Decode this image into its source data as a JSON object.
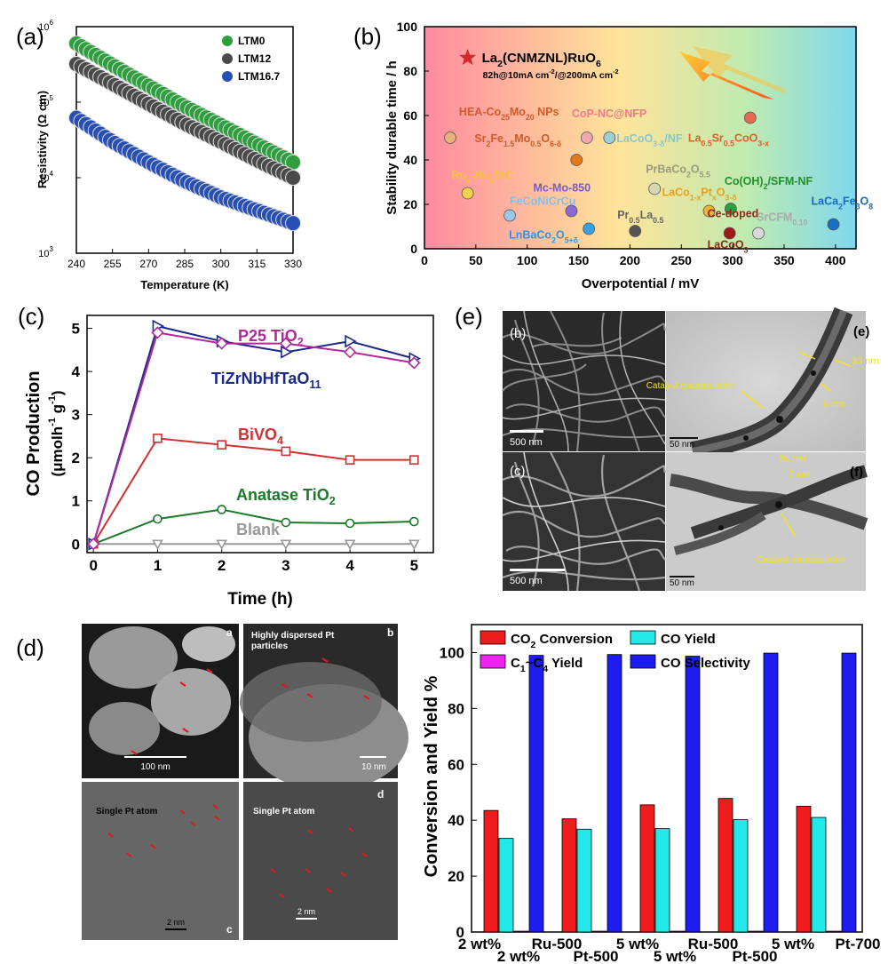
{
  "panel_labels": {
    "a": "(a)",
    "b": "(b)",
    "c": "(c)",
    "d": "(d)",
    "e": "(e)"
  },
  "chart_data": [
    {
      "panel": "a",
      "type": "scatter",
      "xlabel": "Temperature (K)",
      "ylabel": "Resistivity (Ω cm)",
      "xlim": [
        240,
        330
      ],
      "ylim": [
        1000,
        1000000
      ],
      "yscale": "log",
      "xticks": [
        "240",
        "255",
        "270",
        "285",
        "300",
        "315",
        "330"
      ],
      "yticks": [
        "10^3",
        "10^4",
        "10^5",
        "10^6"
      ],
      "legend_position": "top-right",
      "series": [
        {
          "name": "LTM0",
          "color": "#2e9e3e",
          "x": [
            240,
            255,
            270,
            285,
            300,
            315,
            330
          ],
          "y": [
            600000,
            310000,
            165000,
            88000,
            50000,
            28000,
            16000
          ]
        },
        {
          "name": "LTM12",
          "color": "#4a4a4a",
          "x": [
            240,
            255,
            270,
            285,
            300,
            315,
            330
          ],
          "y": [
            320000,
            175000,
            95000,
            52000,
            30000,
            17000,
            10000
          ]
        },
        {
          "name": "LTM16.7",
          "color": "#2850b4",
          "x": [
            240,
            255,
            270,
            285,
            300,
            315,
            330
          ],
          "y": [
            62000,
            30000,
            16000,
            9000,
            5500,
            3700,
            2500
          ]
        }
      ]
    },
    {
      "panel": "b",
      "type": "scatter",
      "xlabel": "Overpotential / mV",
      "ylabel": "Stability durable time / h",
      "xlim": [
        0,
        420
      ],
      "ylim": [
        0,
        100
      ],
      "xticks": [
        "0",
        "50",
        "100",
        "150",
        "200",
        "250",
        "300",
        "350",
        "400"
      ],
      "yticks": [
        "0",
        "20",
        "40",
        "60",
        "80",
        "100"
      ],
      "highlight": {
        "label": "La2(CNMZNL)RuO6",
        "sublabel": "82h@10mA cm-2/@200mA cm-2",
        "x": 42,
        "y": 86,
        "color": "#d42a2a"
      },
      "points": [
        {
          "label": "HEA-Co25Mo20 NPs",
          "x": 25,
          "y": 50,
          "color": "#e8b07a"
        },
        {
          "label": "Sr2Fe1.5Mo0.5O6-δ",
          "x": 148,
          "y": 40,
          "color": "#e07a1a"
        },
        {
          "label": "CoP-NC@NFP",
          "x": 158,
          "y": 50,
          "color": "#f0a8b0"
        },
        {
          "label": "LaCoO3-δ/NF",
          "x": 180,
          "y": 50,
          "color": "#9ad0d8"
        },
        {
          "label": "La0.5Sr0.5CoO3-x",
          "x": 317,
          "y": 59,
          "color": "#e86a50"
        },
        {
          "label": "Run-Rus/NC",
          "x": 42,
          "y": 25,
          "color": "#f2d24a"
        },
        {
          "label": "FeCoNiCrCu",
          "x": 83,
          "y": 15,
          "color": "#9ac8e8"
        },
        {
          "label": "Mc-Mo-850",
          "x": 143,
          "y": 17,
          "color": "#8a6ad0"
        },
        {
          "label": "LnBaCo2O5+δ",
          "x": 160,
          "y": 9,
          "color": "#3aa0e0"
        },
        {
          "label": "Pr0.5La0.5",
          "x": 205,
          "y": 8,
          "color": "#555555"
        },
        {
          "label": "PrBaCo2O5.5",
          "x": 224,
          "y": 27,
          "color": "#d8d8b0"
        },
        {
          "label": "LaCo1-xPtxO3-δ",
          "x": 277,
          "y": 17,
          "color": "#f0b030"
        },
        {
          "label": "Co(OH)2/SFM-NF",
          "x": 298,
          "y": 18,
          "color": "#2aa040"
        },
        {
          "label": "Ce-doped LaCoO3",
          "x": 297,
          "y": 7,
          "color": "#a01a1a"
        },
        {
          "label": "SrCFM0.10",
          "x": 325,
          "y": 7,
          "color": "#d8d8d8"
        },
        {
          "label": "LaCa2Fe3O8",
          "x": 398,
          "y": 11,
          "color": "#1a70c0"
        }
      ]
    },
    {
      "panel": "c",
      "type": "line",
      "xlabel": "Time (h)",
      "ylabel": "CO Production (μmolh-1g-1)",
      "xlim": [
        -0.1,
        5.3
      ],
      "ylim": [
        -0.2,
        5.3
      ],
      "xticks": [
        "0",
        "1",
        "2",
        "3",
        "4",
        "5"
      ],
      "yticks": [
        "0",
        "1",
        "2",
        "3",
        "4",
        "5"
      ],
      "x": [
        0,
        1,
        2,
        3,
        4,
        5
      ],
      "series": [
        {
          "name": "P25 TiO2",
          "color": "#b02a9a",
          "marker": "diamond",
          "values": [
            0,
            4.9,
            4.65,
            4.65,
            4.45,
            4.2
          ]
        },
        {
          "name": "TiZrNbHfTaO11",
          "color": "#1a2a8a",
          "marker": "triangle-right",
          "values": [
            0,
            5.05,
            4.7,
            4.45,
            4.7,
            4.3
          ]
        },
        {
          "name": "BiVO4",
          "color": "#d03030",
          "marker": "square",
          "values": [
            0,
            2.45,
            2.3,
            2.15,
            1.95,
            1.95
          ]
        },
        {
          "name": "Anatase TiO2",
          "color": "#1a7a2a",
          "marker": "circle",
          "values": [
            0,
            0.58,
            0.8,
            0.5,
            0.48,
            0.52
          ]
        },
        {
          "name": "Blank",
          "color": "#999999",
          "marker": "triangle-down",
          "values": [
            0,
            0,
            0,
            0,
            0,
            0
          ]
        }
      ]
    },
    {
      "panel": "d-right",
      "type": "bar",
      "ylabel": "Conversion and Yield %",
      "ylim": [
        0,
        110
      ],
      "yticks": [
        "0",
        "20",
        "40",
        "60",
        "80",
        "100"
      ],
      "categories": [
        "2 wt% Ru-500",
        "2 wt% Pt-500",
        "5 wt% Ru-500",
        "5 wt% Pt-500",
        "5 wt% Pt-700"
      ],
      "tick_labels_top": [
        "2 wt%",
        "Ru-500",
        "5 wt%",
        "Ru-500",
        "5 wt%",
        "Pt-700"
      ],
      "tick_labels_bottom": [
        "2 wt%",
        "Pt-500",
        "5 wt%",
        "Pt-500"
      ],
      "legend_position": "top",
      "series": [
        {
          "name": "CO2 Conversion",
          "color": "#ee1c1c",
          "values": [
            43.5,
            40.5,
            45.5,
            47.8,
            45.0
          ]
        },
        {
          "name": "CO Yield",
          "color": "#22e8e8",
          "values": [
            33.5,
            36.8,
            37.0,
            40.2,
            41.0
          ]
        },
        {
          "name": "C1~C4 Yield",
          "color": "#ee22ee",
          "values": [
            0.3,
            0.3,
            0.3,
            0.3,
            0.3
          ]
        },
        {
          "name": "CO Selectivity",
          "color": "#1c1cee",
          "values": [
            99.0,
            99.3,
            98.7,
            99.8,
            99.8
          ]
        }
      ]
    }
  ],
  "micrographs": {
    "e": {
      "b": {
        "tag": "(b)",
        "scale": "500 nm"
      },
      "c": {
        "tag": "(c)",
        "scale": "500 nm"
      },
      "e": {
        "tag": "(e)",
        "scale": "50 nm",
        "width": "33 nm",
        "inner": "8 nm",
        "note": "Catalyst encapsulation"
      },
      "f": {
        "tag": "(f)",
        "scale": "50 nm",
        "width": "26 nm",
        "inner": "7 nm",
        "note": "Catalyst encapsulation"
      }
    },
    "d": {
      "a": {
        "tag": "a",
        "scale": "100 nm"
      },
      "b": {
        "tag": "b",
        "title": "Highly dispersed Pt particles",
        "scale": "10 nm"
      },
      "c": {
        "tag": "c",
        "title": "Single Pt atom",
        "scale": "2 nm"
      },
      "d": {
        "tag": "d",
        "title": "Single Pt atom",
        "scale": "2 nm"
      }
    }
  }
}
